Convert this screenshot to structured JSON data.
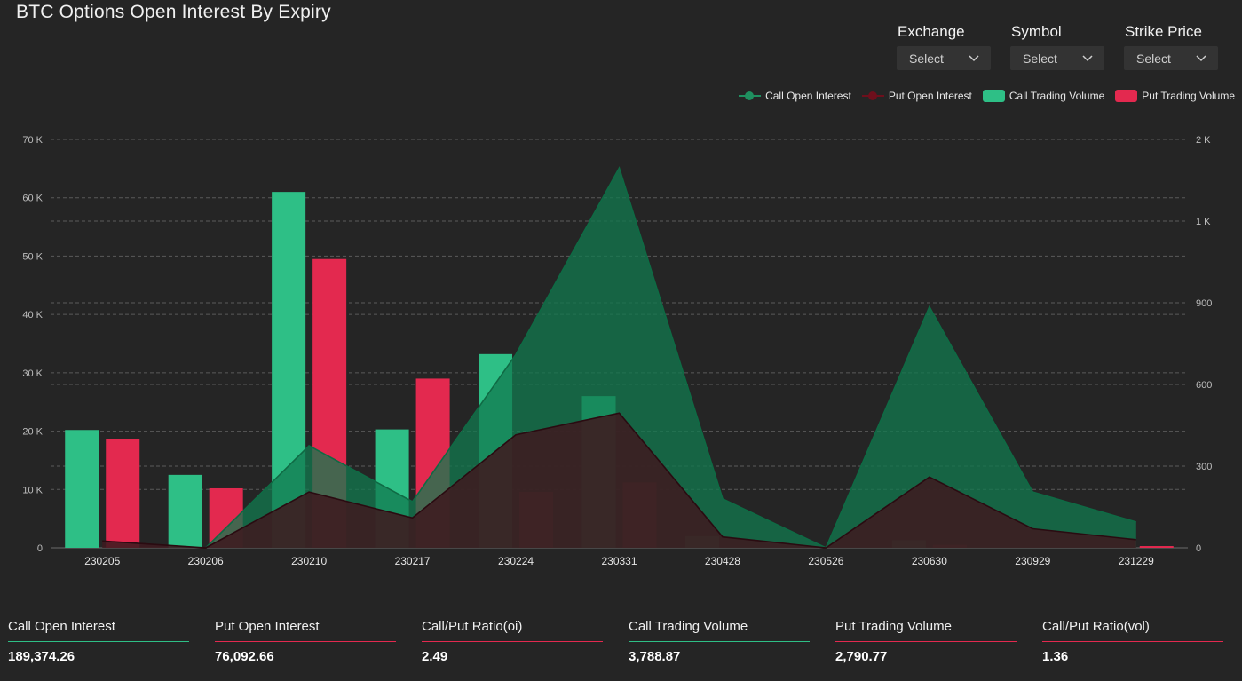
{
  "title": "BTC Options Open Interest By Expiry",
  "filters": [
    {
      "label": "Exchange",
      "value": "Select"
    },
    {
      "label": "Symbol",
      "value": "Select"
    },
    {
      "label": "Strike Price",
      "value": "Select"
    }
  ],
  "legend": [
    {
      "label": "Call Open Interest",
      "kind": "line",
      "color": "#1f8f5f"
    },
    {
      "label": "Put Open Interest",
      "kind": "line",
      "color": "#6e0f1c"
    },
    {
      "label": "Call Trading Volume",
      "kind": "rect",
      "color": "#2ebf86"
    },
    {
      "label": "Put Trading Volume",
      "kind": "rect",
      "color": "#e3294f"
    }
  ],
  "chart_data": {
    "type": "bar",
    "title": "BTC Options Open Interest By Expiry",
    "categories": [
      "230205",
      "230206",
      "230210",
      "230217",
      "230224",
      "230331",
      "230428",
      "230526",
      "230630",
      "230929",
      "231229"
    ],
    "y_left": {
      "ticks": [
        "0",
        "10 K",
        "20 K",
        "30 K",
        "40 K",
        "50 K",
        "60 K",
        "70 K"
      ],
      "min": 0,
      "max": 70000
    },
    "y_right": {
      "ticks": [
        "0",
        "300",
        "600",
        "900",
        "1 K",
        "2 K"
      ],
      "values": [
        0,
        300,
        600,
        900,
        1200,
        1500
      ]
    },
    "grid": true,
    "legend_position": "top-right",
    "series": [
      {
        "name": "Call Trading Volume",
        "type": "bar",
        "axis": "left",
        "color": "#2ebf86",
        "values": [
          20200,
          12500,
          61000,
          20300,
          33200,
          26000,
          2000,
          0,
          1300,
          0,
          0
        ]
      },
      {
        "name": "Put Trading Volume",
        "type": "bar",
        "axis": "left",
        "color": "#e3294f",
        "values": [
          18700,
          10200,
          49500,
          29000,
          9600,
          11200,
          0,
          0,
          500,
          0,
          300
        ]
      },
      {
        "name": "Call Open Interest",
        "type": "area",
        "axis": "right",
        "color": "#1f8f5f",
        "values": [
          null,
          0,
          375,
          170,
          710,
          1395,
          180,
          0,
          885,
          205,
          95
        ]
      },
      {
        "name": "Put Open Interest",
        "type": "area",
        "axis": "right",
        "color": "#6e0f1c",
        "values": [
          25,
          0,
          205,
          110,
          415,
          495,
          40,
          0,
          260,
          70,
          30
        ]
      }
    ]
  },
  "stats": [
    {
      "label": "Call Open Interest",
      "value": "189,374.26",
      "color": "#2ebf86"
    },
    {
      "label": "Put Open Interest",
      "value": "76,092.66",
      "color": "#e3294f"
    },
    {
      "label": "Call/Put Ratio(oi)",
      "value": "2.49",
      "color": "#e3294f"
    },
    {
      "label": "Call Trading Volume",
      "value": "3,788.87",
      "color": "#2ebf86"
    },
    {
      "label": "Put Trading Volume",
      "value": "2,790.77",
      "color": "#e3294f"
    },
    {
      "label": "Call/Put Ratio(vol)",
      "value": "1.36",
      "color": "#e3294f"
    }
  ]
}
